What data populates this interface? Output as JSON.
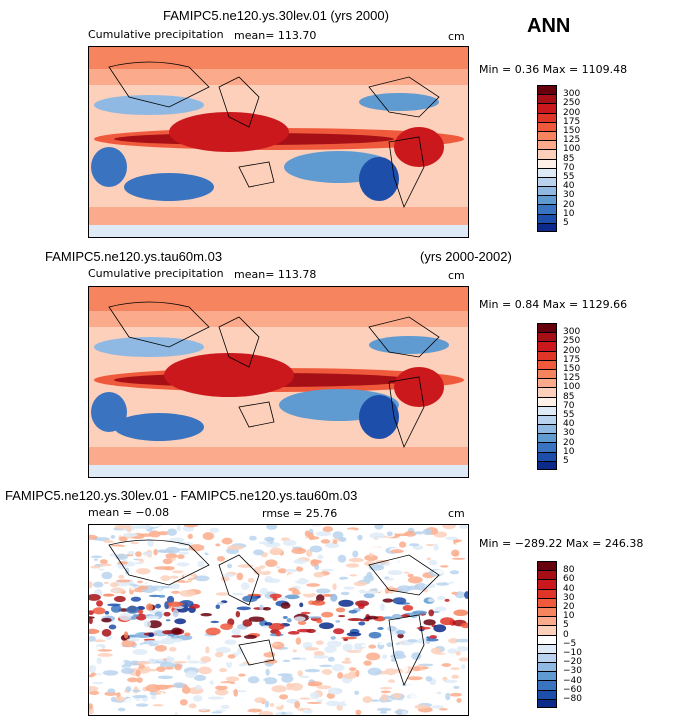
{
  "season": "ANN",
  "panel1": {
    "title": "FAMIPC5.ne120.ys.30lev.01 (yrs 2000)",
    "subtitle": "Cumulative precipitation",
    "mean": "mean= 113.70",
    "units": "cm",
    "minmax": "Min =   0.36 Max = 1109.48"
  },
  "panel2": {
    "title": "FAMIPC5.ne120.ys.tau60m.03",
    "years": "(yrs 2000-2002)",
    "subtitle": "Cumulative precipitation",
    "mean": "mean= 113.78",
    "units": "cm",
    "minmax": "Min =   0.84 Max = 1129.66"
  },
  "panel3": {
    "title": "FAMIPC5.ne120.ys.30lev.01 - FAMIPC5.ne120.ys.tau60m.03",
    "mean": "mean =  −0.08",
    "rmse": "rmse =  25.76",
    "units": "cm",
    "minmax": "Min = −289.22 Max = 246.38"
  },
  "colorbar_precip": {
    "labels": [
      "300",
      "250",
      "200",
      "175",
      "150",
      "125",
      "100",
      "85",
      "70",
      "55",
      "40",
      "30",
      "20",
      "10",
      "5"
    ],
    "colors": [
      "#67000d",
      "#a50f15",
      "#cb181d",
      "#e03628",
      "#ef5a3c",
      "#f6845e",
      "#fbab8b",
      "#fdd0bb",
      "#fff0e8",
      "#deebf7",
      "#b9d3ee",
      "#8fb9e3",
      "#5f9ad1",
      "#3a74c0",
      "#1d4faa",
      "#0b2a8a"
    ]
  },
  "colorbar_diff": {
    "labels": [
      "80",
      "60",
      "40",
      "30",
      "20",
      "10",
      "5",
      "0",
      "−5",
      "−10",
      "−20",
      "−30",
      "−40",
      "−60",
      "−80"
    ],
    "colors": [
      "#67000d",
      "#a50f15",
      "#cb181d",
      "#e03628",
      "#ef5a3c",
      "#f6845e",
      "#fbab8b",
      "#fdd0bb",
      "#ffffff",
      "#deebf7",
      "#b9d3ee",
      "#8fb9e3",
      "#5f9ad1",
      "#3a74c0",
      "#1d4faa",
      "#0b2a8a"
    ]
  }
}
